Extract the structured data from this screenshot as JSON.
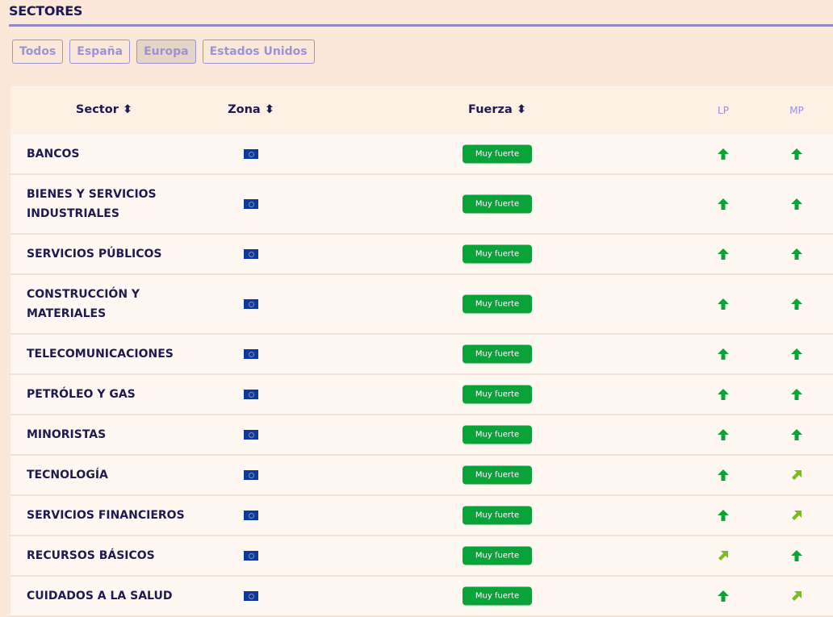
{
  "title": "SECTORES",
  "filters": [
    {
      "label": "Todos",
      "active": false
    },
    {
      "label": "España",
      "active": false
    },
    {
      "label": "Europa",
      "active": true
    },
    {
      "label": "Estados Unidos",
      "active": false
    }
  ],
  "columns": {
    "sector": "Sector",
    "zona": "Zona",
    "fuerza": "Fuerza",
    "lp": "LP",
    "mp": "MP",
    "sort_icon": "sort-icon"
  },
  "colors": {
    "strong_up": "#0aa33a",
    "moderate_up": "#7dbb1f",
    "badge": "#0aa33a"
  },
  "rows": [
    {
      "sector": "BANCOS",
      "zona": "eu-flag",
      "fuerza": "Muy fuerte",
      "lp": "up",
      "mp": "up"
    },
    {
      "sector": "BIENES Y SERVICIOS INDUSTRIALES",
      "zona": "eu-flag",
      "fuerza": "Muy fuerte",
      "lp": "up",
      "mp": "up"
    },
    {
      "sector": "SERVICIOS PÚBLICOS",
      "zona": "eu-flag",
      "fuerza": "Muy fuerte",
      "lp": "up",
      "mp": "up"
    },
    {
      "sector": "CONSTRUCCIÓN Y MATERIALES",
      "zona": "eu-flag",
      "fuerza": "Muy fuerte",
      "lp": "up",
      "mp": "up"
    },
    {
      "sector": "TELECOMUNICACIONES",
      "zona": "eu-flag",
      "fuerza": "Muy fuerte",
      "lp": "up",
      "mp": "up"
    },
    {
      "sector": "PETRÓLEO Y GAS",
      "zona": "eu-flag",
      "fuerza": "Muy fuerte",
      "lp": "up",
      "mp": "up"
    },
    {
      "sector": "MINORISTAS",
      "zona": "eu-flag",
      "fuerza": "Muy fuerte",
      "lp": "up",
      "mp": "up"
    },
    {
      "sector": "TECNOLOGÍA",
      "zona": "eu-flag",
      "fuerza": "Muy fuerte",
      "lp": "up",
      "mp": "up-right"
    },
    {
      "sector": "SERVICIOS FINANCIEROS",
      "zona": "eu-flag",
      "fuerza": "Muy fuerte",
      "lp": "up",
      "mp": "up-right"
    },
    {
      "sector": "RECURSOS BÁSICOS",
      "zona": "eu-flag",
      "fuerza": "Muy fuerte",
      "lp": "up-right",
      "mp": "up"
    },
    {
      "sector": "CUIDADOS A LA SALUD",
      "zona": "eu-flag",
      "fuerza": "Muy fuerte",
      "lp": "up",
      "mp": "up-right"
    }
  ]
}
